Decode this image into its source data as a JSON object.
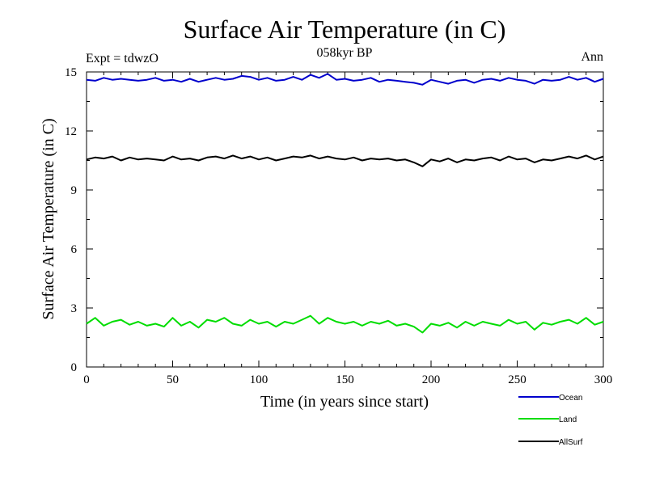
{
  "chart_data": {
    "type": "line",
    "title": "Surface Air Temperature (in C)",
    "subtitle": "058kyr BP",
    "experiment_label": "Expt = tdwzO",
    "period_label": "Ann",
    "xlabel": "Time (in years since start)",
    "ylabel": "Surface Air Temperature (in C)",
    "xlim": [
      0,
      300
    ],
    "ylim": [
      0,
      15
    ],
    "x_ticks": [
      0,
      50,
      100,
      150,
      200,
      250,
      300
    ],
    "x_tick_labels": [
      "0",
      "50",
      "100",
      "150",
      "200",
      "250",
      "300"
    ],
    "y_ticks": [
      0,
      3,
      6,
      9,
      12,
      15
    ],
    "y_tick_labels": [
      "0",
      "3",
      "6",
      "9",
      "12",
      "15"
    ],
    "grid": false,
    "legend_position": "bottom-right",
    "x": [
      0,
      5,
      10,
      15,
      20,
      25,
      30,
      35,
      40,
      45,
      50,
      55,
      60,
      65,
      70,
      75,
      80,
      85,
      90,
      95,
      100,
      105,
      110,
      115,
      120,
      125,
      130,
      135,
      140,
      145,
      150,
      155,
      160,
      165,
      170,
      175,
      180,
      185,
      190,
      195,
      200,
      205,
      210,
      215,
      220,
      225,
      230,
      235,
      240,
      245,
      250,
      255,
      260,
      265,
      270,
      275,
      280,
      285,
      290,
      295,
      300
    ],
    "series": [
      {
        "name": "Ocean",
        "color": "#0000cc",
        "values": [
          14.6,
          14.55,
          14.7,
          14.6,
          14.65,
          14.6,
          14.55,
          14.6,
          14.7,
          14.55,
          14.6,
          14.5,
          14.65,
          14.5,
          14.6,
          14.7,
          14.6,
          14.65,
          14.8,
          14.75,
          14.6,
          14.7,
          14.55,
          14.6,
          14.75,
          14.6,
          14.85,
          14.7,
          14.9,
          14.6,
          14.65,
          14.55,
          14.6,
          14.7,
          14.5,
          14.6,
          14.55,
          14.5,
          14.45,
          14.35,
          14.6,
          14.5,
          14.4,
          14.55,
          14.6,
          14.45,
          14.6,
          14.65,
          14.55,
          14.7,
          14.6,
          14.55,
          14.4,
          14.6,
          14.55,
          14.6,
          14.75,
          14.6,
          14.7,
          14.5,
          14.65
        ]
      },
      {
        "name": "Land",
        "color": "#00dd00",
        "values": [
          2.2,
          2.5,
          2.1,
          2.3,
          2.4,
          2.15,
          2.3,
          2.1,
          2.2,
          2.05,
          2.5,
          2.1,
          2.3,
          2.0,
          2.4,
          2.3,
          2.5,
          2.2,
          2.1,
          2.4,
          2.2,
          2.3,
          2.05,
          2.3,
          2.2,
          2.4,
          2.6,
          2.2,
          2.5,
          2.3,
          2.2,
          2.3,
          2.1,
          2.3,
          2.2,
          2.35,
          2.1,
          2.2,
          2.05,
          1.75,
          2.2,
          2.1,
          2.25,
          2.0,
          2.3,
          2.1,
          2.3,
          2.2,
          2.1,
          2.4,
          2.2,
          2.3,
          1.9,
          2.25,
          2.15,
          2.3,
          2.4,
          2.2,
          2.5,
          2.15,
          2.3
        ]
      },
      {
        "name": "AllSurf",
        "color": "#000000",
        "values": [
          10.55,
          10.65,
          10.6,
          10.7,
          10.5,
          10.65,
          10.55,
          10.6,
          10.55,
          10.5,
          10.7,
          10.55,
          10.6,
          10.5,
          10.65,
          10.7,
          10.6,
          10.75,
          10.6,
          10.7,
          10.55,
          10.65,
          10.5,
          10.6,
          10.7,
          10.65,
          10.75,
          10.6,
          10.7,
          10.6,
          10.55,
          10.65,
          10.5,
          10.6,
          10.55,
          10.6,
          10.5,
          10.55,
          10.4,
          10.2,
          10.55,
          10.45,
          10.6,
          10.4,
          10.55,
          10.5,
          10.6,
          10.65,
          10.5,
          10.7,
          10.55,
          10.6,
          10.4,
          10.55,
          10.5,
          10.6,
          10.7,
          10.6,
          10.75,
          10.55,
          10.7
        ]
      }
    ]
  }
}
